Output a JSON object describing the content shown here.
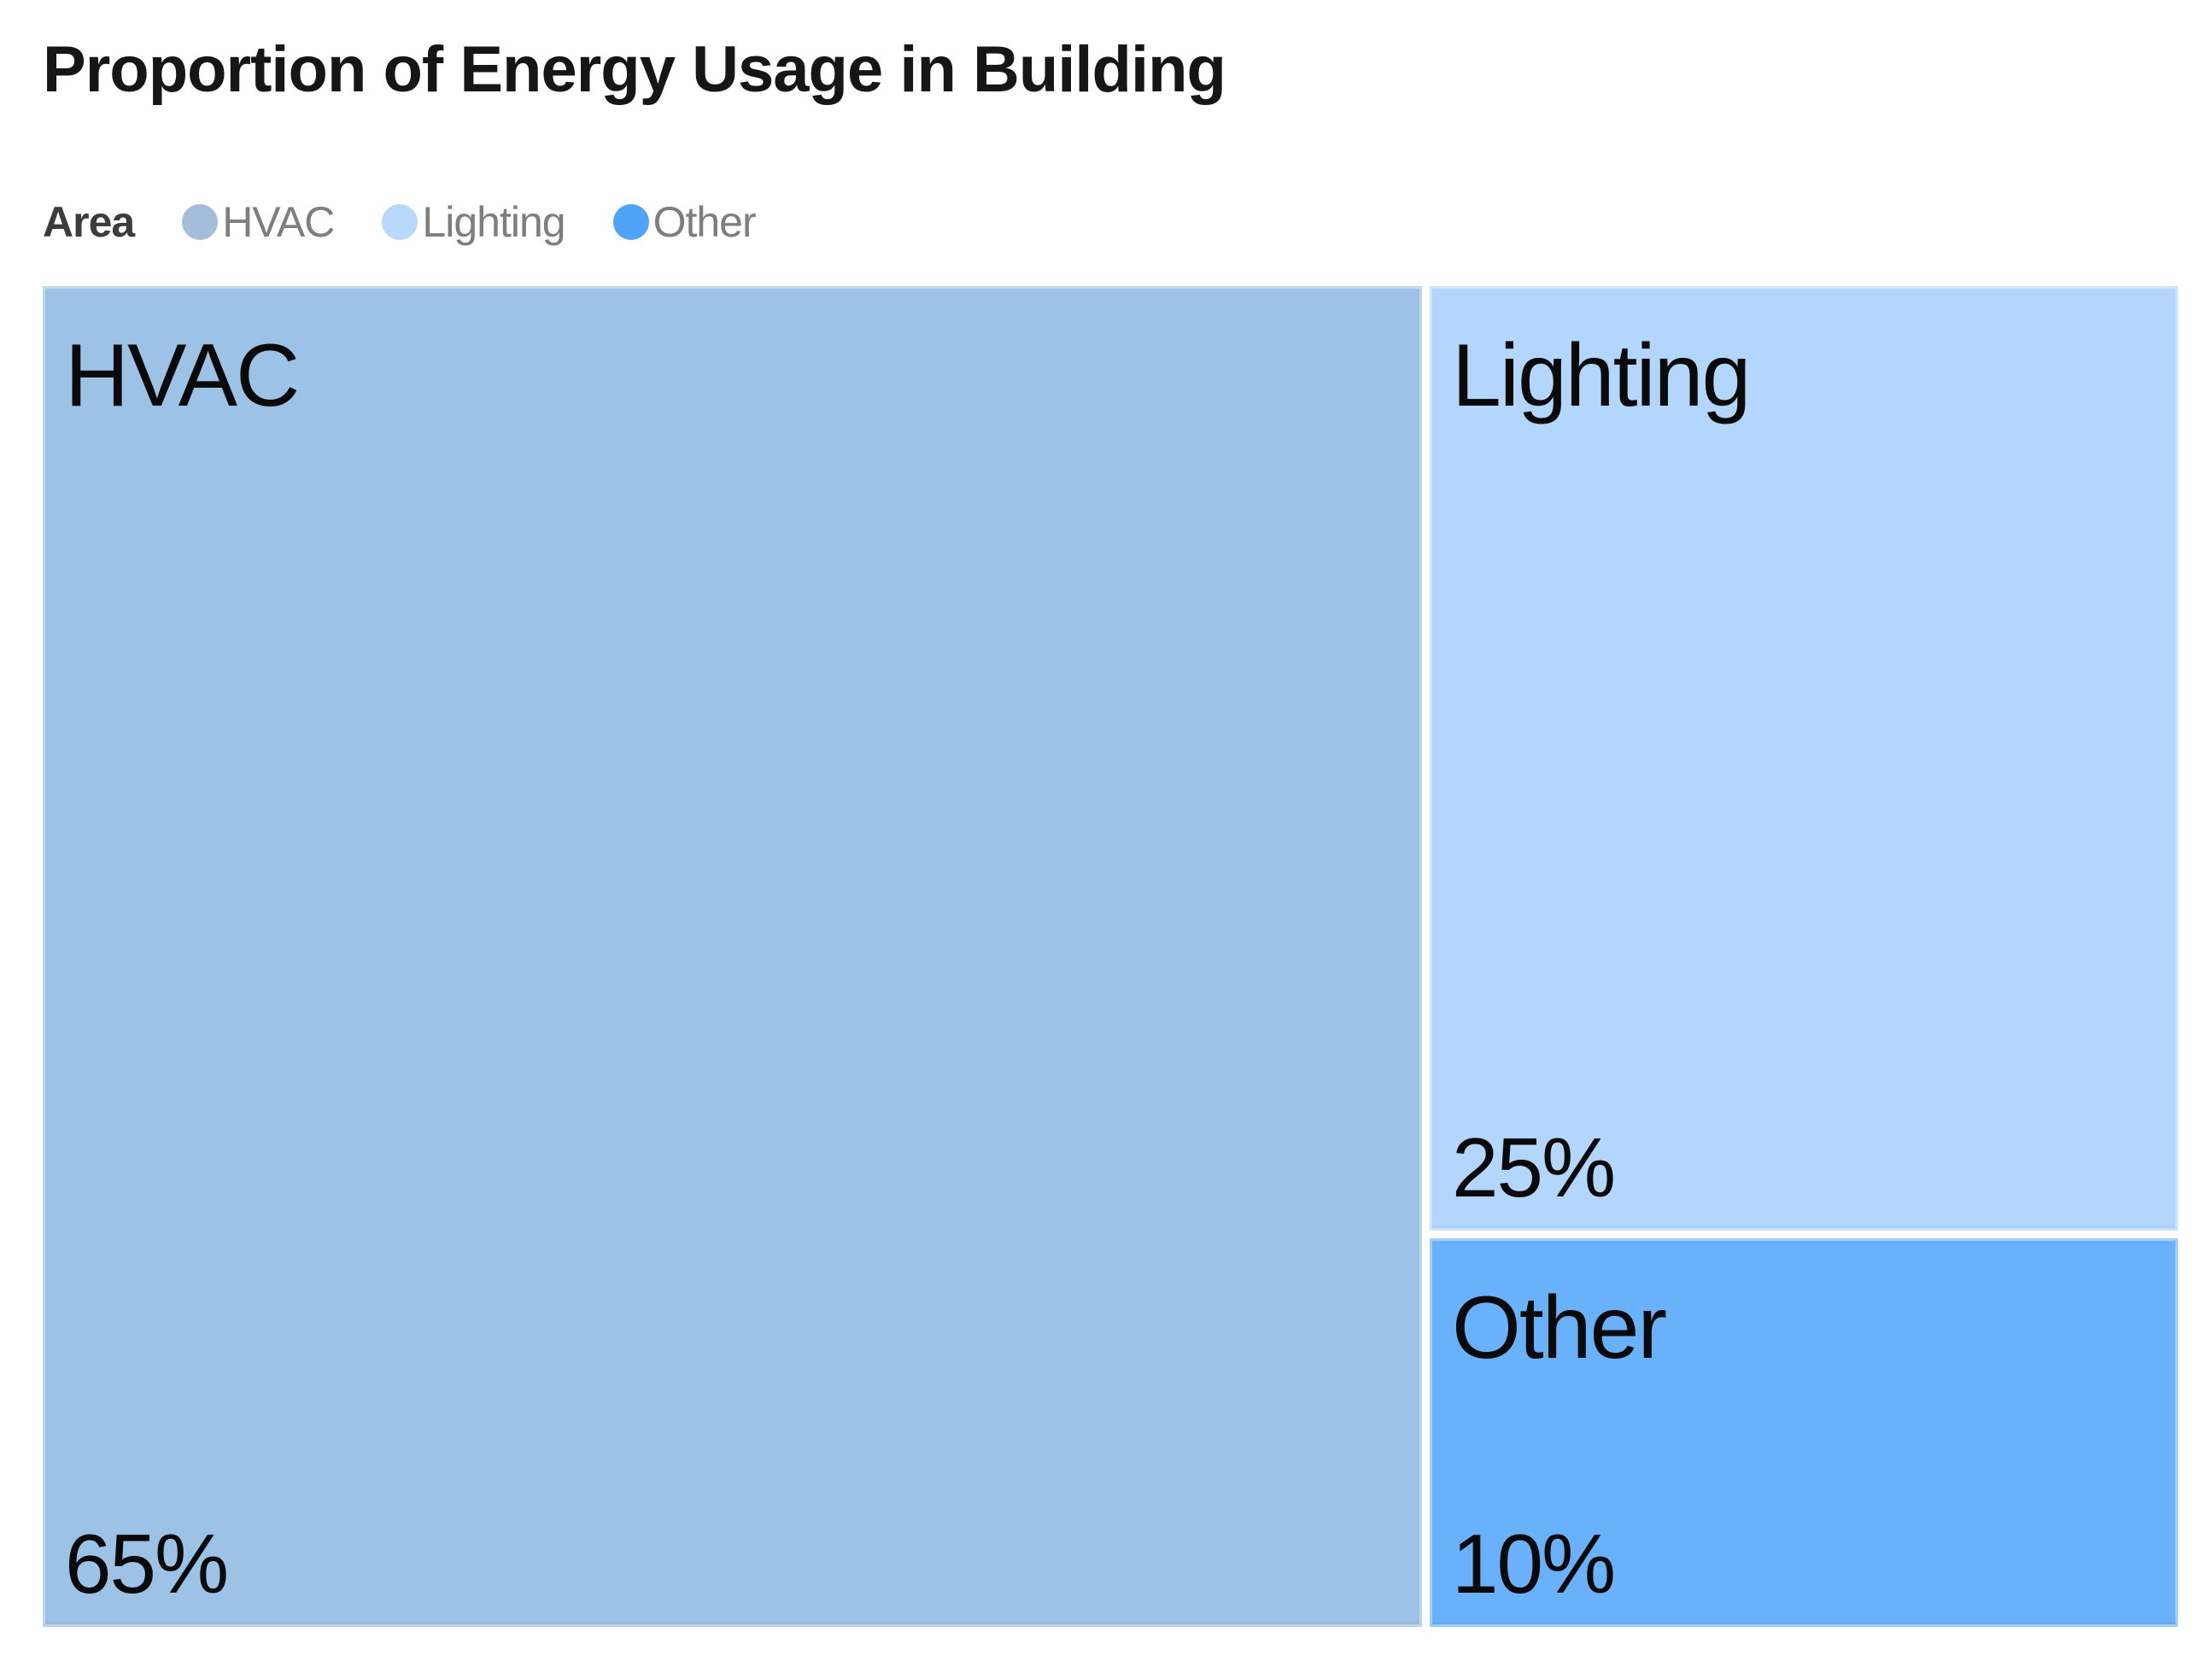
{
  "title": "Proportion of Energy Usage in Building",
  "legend": {
    "field_label": "Area",
    "items": [
      {
        "label": "HVAC",
        "marker_color": "#A3BEDA"
      },
      {
        "label": "Lighting",
        "marker_color": "#B9D9FB"
      },
      {
        "label": "Other",
        "marker_color": "#4FA3F8"
      }
    ]
  },
  "treemap": {
    "segments": [
      {
        "name": "HVAC",
        "value_label": "65%",
        "color": "#9CC2E5"
      },
      {
        "name": "Lighting",
        "value_label": "25%",
        "color": "#B3D7FC"
      },
      {
        "name": "Other",
        "value_label": "10%",
        "color": "#69B1FA"
      }
    ]
  },
  "chart_data": {
    "type": "treemap",
    "title": "Proportion of Energy Usage in Building",
    "legend_title": "Area",
    "categories": [
      "HVAC",
      "Lighting",
      "Other"
    ],
    "values": [
      65,
      25,
      10
    ],
    "unit": "percent",
    "data_labels": [
      "65%",
      "25%",
      "10%"
    ],
    "colors": [
      "#9CC2E5",
      "#B3D7FC",
      "#69B1FA"
    ],
    "legend_position": "top-left",
    "layout": "HVAC fills left column full height (65% of width); right column split into Lighting (top, 25%) and Other (bottom, 10%)"
  }
}
